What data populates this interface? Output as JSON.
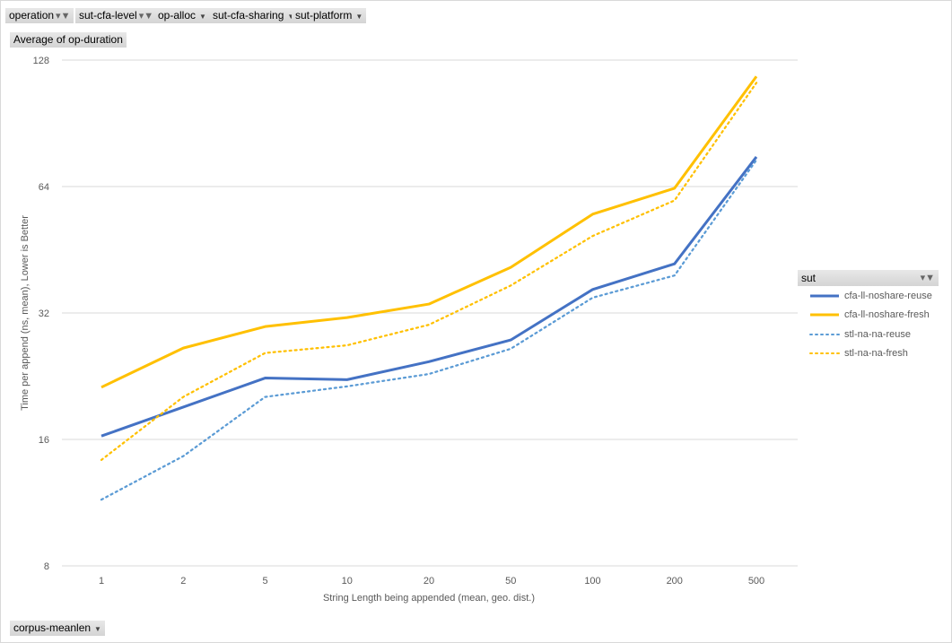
{
  "filters": [
    {
      "label": "operation",
      "filtered": true
    },
    {
      "label": "sut-cfa-level",
      "filtered": true
    },
    {
      "label": "op-alloc",
      "filtered": false
    },
    {
      "label": "sut-cfa-sharing",
      "filtered": false
    },
    {
      "label": "sut-platform",
      "filtered": false
    }
  ],
  "values_field": "Average of op-duration",
  "axis_field": "corpus-meanlen",
  "legend": {
    "title": "sut"
  },
  "chart_data": {
    "type": "line",
    "xlabel": "String Length  being appended (mean, geo. dist.)",
    "ylabel": "Time per append (ns, mean),  Lower is Better",
    "categories": [
      "1",
      "2",
      "5",
      "10",
      "20",
      "50",
      "100",
      "200",
      "500"
    ],
    "yscale": "log2",
    "ylim": [
      8,
      128
    ],
    "yticks": [
      8,
      16,
      32,
      64,
      128
    ],
    "grid": true,
    "legend_position": "right",
    "series": [
      {
        "name": "cfa-ll-noshare-reuse",
        "color": "#4472C4",
        "style": "solid",
        "values": [
          16.3,
          19.1,
          22.4,
          22.2,
          24.5,
          27.6,
          36.4,
          41.9,
          75.3
        ]
      },
      {
        "name": "cfa-ll-noshare-fresh",
        "color": "#FFC000",
        "style": "solid",
        "values": [
          21.3,
          26.4,
          29.7,
          31.2,
          33.6,
          41.1,
          55,
          63.4,
          117
        ]
      },
      {
        "name": "stl-na-na-reuse",
        "color": "#5B9BD5",
        "style": "dotted",
        "values": [
          11.5,
          14.6,
          20.2,
          21.4,
          22.9,
          26.3,
          34.8,
          39.3,
          74
        ]
      },
      {
        "name": "stl-na-na-fresh",
        "color": "#FFC000",
        "style": "dotted",
        "values": [
          14.3,
          20.2,
          25.7,
          26.8,
          30.0,
          37.2,
          48.8,
          59.3,
          113
        ]
      }
    ]
  }
}
